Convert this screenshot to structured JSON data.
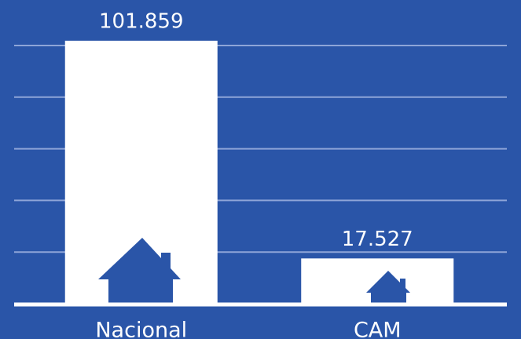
{
  "chart_data": {
    "type": "bar",
    "categories": [
      "Nacional",
      "CAM"
    ],
    "values": [
      101859,
      17527
    ],
    "value_labels": [
      "101.859",
      "17.527"
    ],
    "color": "#ffffff",
    "ylim": [
      0,
      100000
    ],
    "yticks": [
      0,
      20000,
      40000,
      60000,
      80000,
      100000
    ],
    "grid": true
  }
}
